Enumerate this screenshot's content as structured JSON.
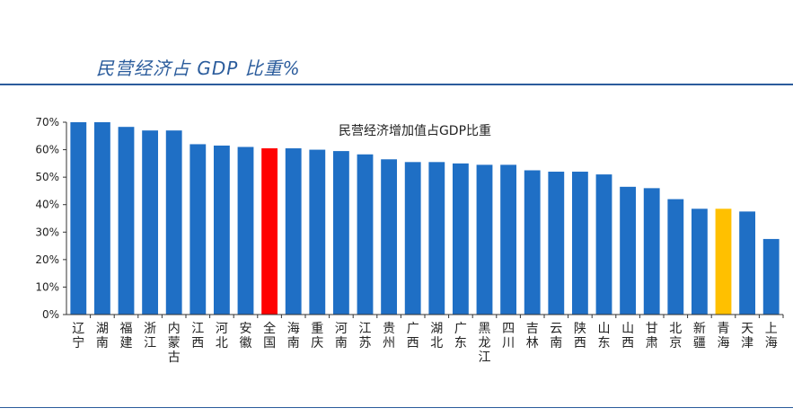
{
  "header": {
    "title": "民营经济占 GDP 比重%"
  },
  "chart_data": {
    "type": "bar",
    "title": "民营经济增加值占GDP比重",
    "xlabel": "",
    "ylabel": "",
    "ylim": [
      0,
      70
    ],
    "yticks": [
      0,
      10,
      20,
      30,
      40,
      50,
      60,
      70
    ],
    "ytick_labels": [
      "0%",
      "10%",
      "20%",
      "30%",
      "40%",
      "50%",
      "60%",
      "70%"
    ],
    "grid": false,
    "categories": [
      "辽宁",
      "湖南",
      "福建",
      "浙江",
      "内蒙古",
      "江西",
      "河北",
      "安徽",
      "全国",
      "海南",
      "重庆",
      "河南",
      "江苏",
      "贵州",
      "广西",
      "湖北",
      "广东",
      "黑龙江",
      "四川",
      "吉林",
      "云南",
      "陕西",
      "山东",
      "山西",
      "甘肃",
      "北京",
      "新疆",
      "青海",
      "天津",
      "上海"
    ],
    "values": [
      70,
      70,
      68.3,
      67,
      67,
      62,
      61.5,
      61,
      60.5,
      60.5,
      60,
      59.5,
      58.3,
      56.5,
      55.5,
      55.5,
      55,
      54.5,
      54.5,
      52.5,
      52,
      52,
      51,
      46.5,
      46,
      42,
      38.5,
      38.5,
      37.5,
      27.5
    ],
    "colors": {
      "default": "#1f6fc5",
      "national": "#ff0000",
      "highlight": "#ffc000"
    },
    "highlight": {
      "全国": "national",
      "青海": "highlight"
    }
  }
}
